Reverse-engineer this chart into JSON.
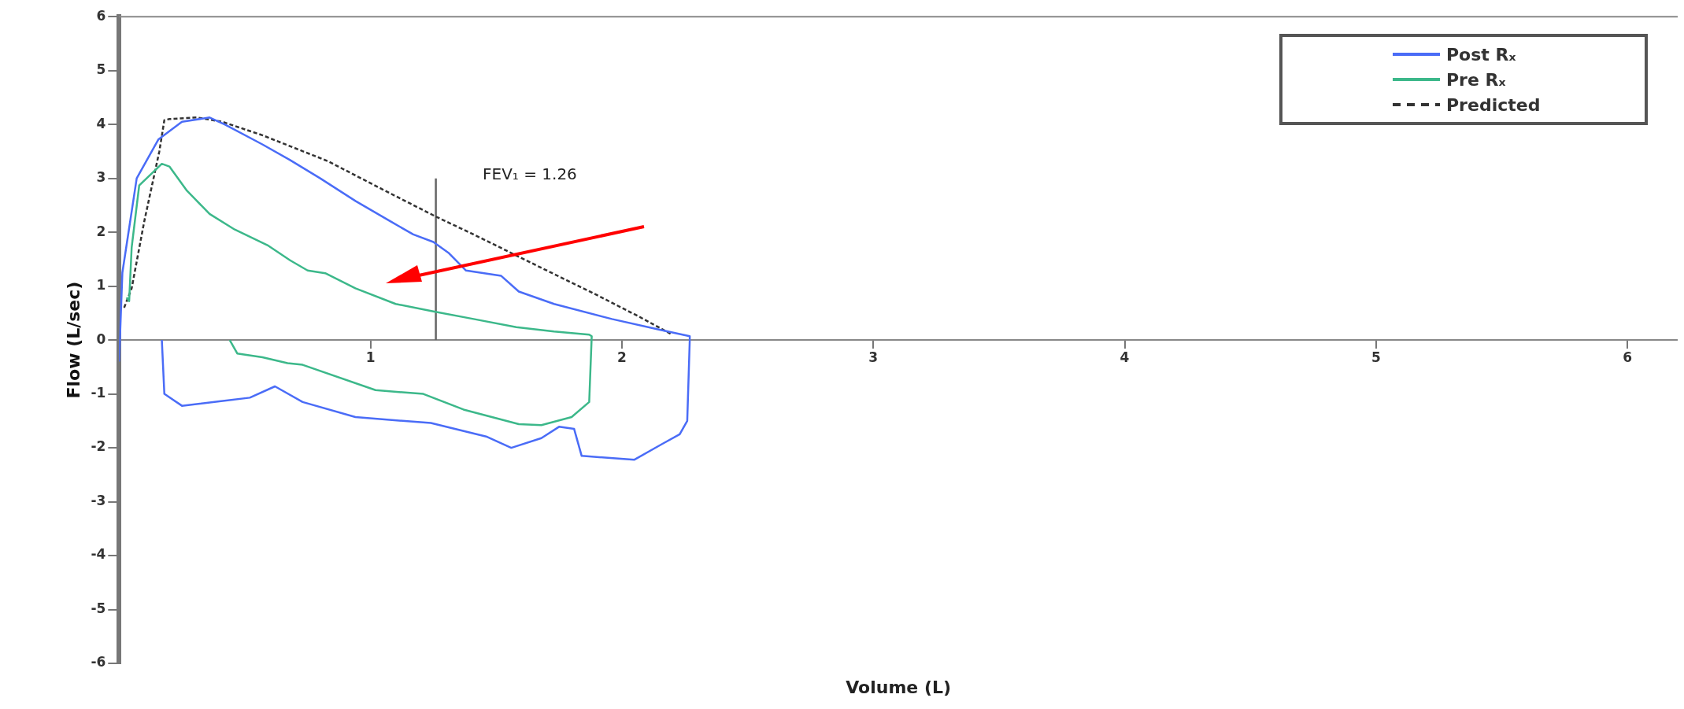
{
  "chart_data": {
    "type": "line",
    "xlabel": "Volume (L)",
    "ylabel": "Flow (L/sec)",
    "xlim": [
      0,
      6.2
    ],
    "ylim": [
      -6,
      6
    ],
    "xticks": [
      1,
      2,
      3,
      4,
      5,
      6
    ],
    "yticks": [
      -6,
      -5,
      -4,
      -3,
      -2,
      -1,
      0,
      1,
      2,
      3,
      4,
      5,
      6
    ],
    "grid": false,
    "legend": "top right",
    "marker": "none",
    "annotations": [
      "FEV₁ = 1.26"
    ],
    "series": [
      {
        "name": "Post Rₓ",
        "color": "#4a6cf7",
        "line_style": "solid",
        "x": [
          0.0,
          0.013,
          0.07,
          0.156,
          0.25,
          0.36,
          0.42,
          0.57,
          0.68,
          0.8,
          0.94,
          1.08,
          1.17,
          1.25,
          1.31,
          1.38,
          1.52,
          1.59,
          1.73,
          1.96,
          2.15,
          2.27,
          2.27,
          2.26,
          2.23,
          2.16,
          2.05,
          1.84,
          1.81,
          1.75,
          1.68,
          1.56,
          1.46,
          1.24,
          0.94,
          0.73,
          0.62,
          0.52,
          0.25,
          0.18,
          0.17
        ],
        "values": [
          -0.4,
          1.25,
          3.0,
          3.72,
          4.05,
          4.13,
          4.0,
          3.63,
          3.34,
          3.0,
          2.58,
          2.2,
          1.96,
          1.82,
          1.62,
          1.29,
          1.19,
          0.9,
          0.67,
          0.39,
          0.19,
          0.07,
          0,
          -1.5,
          -1.75,
          -1.93,
          -2.22,
          -2.15,
          -1.65,
          -1.61,
          -1.82,
          -2.0,
          -1.79,
          -1.54,
          -1.43,
          -1.15,
          -0.86,
          -1.07,
          -1.22,
          -1.0,
          0
        ]
      },
      {
        "name": "Pre Rₓ",
        "color": "#3cb88a",
        "line_style": "solid",
        "x": [
          0.03,
          0.04,
          0.05,
          0.08,
          0.17,
          0.2,
          0.27,
          0.36,
          0.46,
          0.59,
          0.68,
          0.75,
          0.82,
          0.94,
          1.1,
          1.25,
          1.41,
          1.58,
          1.73,
          1.87,
          1.88,
          1.87,
          1.8,
          1.68,
          1.59,
          1.37,
          1.21,
          1.02,
          0.73,
          0.67,
          0.57,
          0.47,
          0.44
        ],
        "values": [
          0.79,
          0.72,
          1.72,
          2.87,
          3.27,
          3.22,
          2.77,
          2.34,
          2.05,
          1.76,
          1.48,
          1.29,
          1.24,
          0.96,
          0.67,
          0.53,
          0.39,
          0.24,
          0.16,
          0.1,
          0.07,
          -1.15,
          -1.43,
          -1.58,
          -1.56,
          -1.29,
          -1.0,
          -0.93,
          -0.46,
          -0.43,
          -0.32,
          -0.25,
          0
        ]
      },
      {
        "name": "Predicted",
        "color": "#333333",
        "line_style": "dashed",
        "x": [
          0.02,
          0.05,
          0.1,
          0.16,
          0.18,
          0.2,
          0.31,
          0.41,
          0.57,
          0.83,
          1.05,
          1.26,
          1.41,
          1.64,
          1.89,
          2.07,
          2.2
        ],
        "values": [
          0.6,
          0.96,
          2.2,
          3.5,
          4.08,
          4.1,
          4.13,
          4.05,
          3.8,
          3.32,
          2.79,
          2.29,
          1.96,
          1.43,
          0.86,
          0.43,
          0.1
        ]
      },
      {
        "type": "line",
        "color": "#666666",
        "line_style": "solid",
        "x": [
          1.26,
          1.26
        ],
        "values": [
          0,
          3
        ]
      }
    ]
  }
}
